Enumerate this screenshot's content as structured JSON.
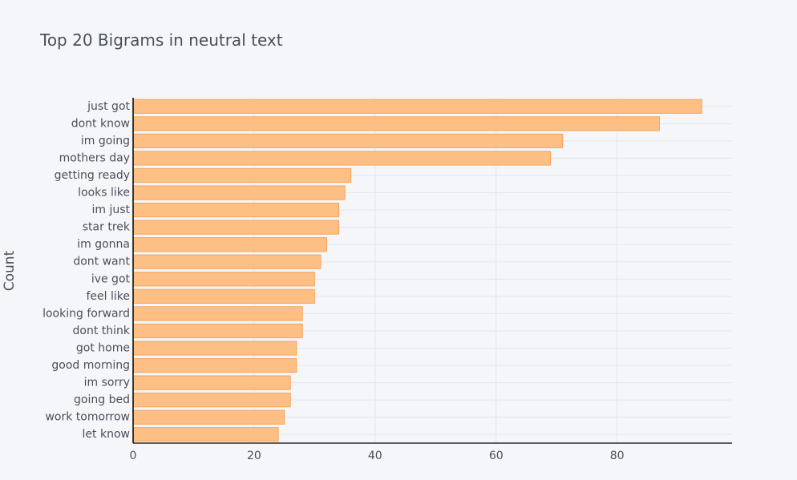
{
  "chart_data": {
    "type": "bar",
    "orientation": "horizontal",
    "title": "Top 20 Bigrams in neutral text",
    "xlabel": "",
    "ylabel": "Count",
    "xlim": [
      0,
      99
    ],
    "x_ticks": [
      "0",
      "20",
      "40",
      "60",
      "80"
    ],
    "x_tick_values": [
      0,
      20,
      40,
      60,
      80
    ],
    "categories": [
      "just got",
      "dont know",
      "im going",
      "mothers day",
      "getting ready",
      "looks like",
      "im just",
      "star trek",
      "im gonna",
      "dont want",
      "ive got",
      "feel like",
      "looking forward",
      "dont think",
      "got home",
      "good morning",
      "im sorry",
      "going bed",
      "work tomorrow",
      "let know"
    ],
    "values": [
      94,
      87,
      71,
      69,
      36,
      35,
      34,
      34,
      32,
      31,
      30,
      30,
      28,
      28,
      27,
      27,
      26,
      26,
      25,
      24
    ],
    "grid": true,
    "bar_color": "#fdbf84",
    "bar_edge_color": "#f8a55b",
    "background_color": "#f5f6fa"
  }
}
